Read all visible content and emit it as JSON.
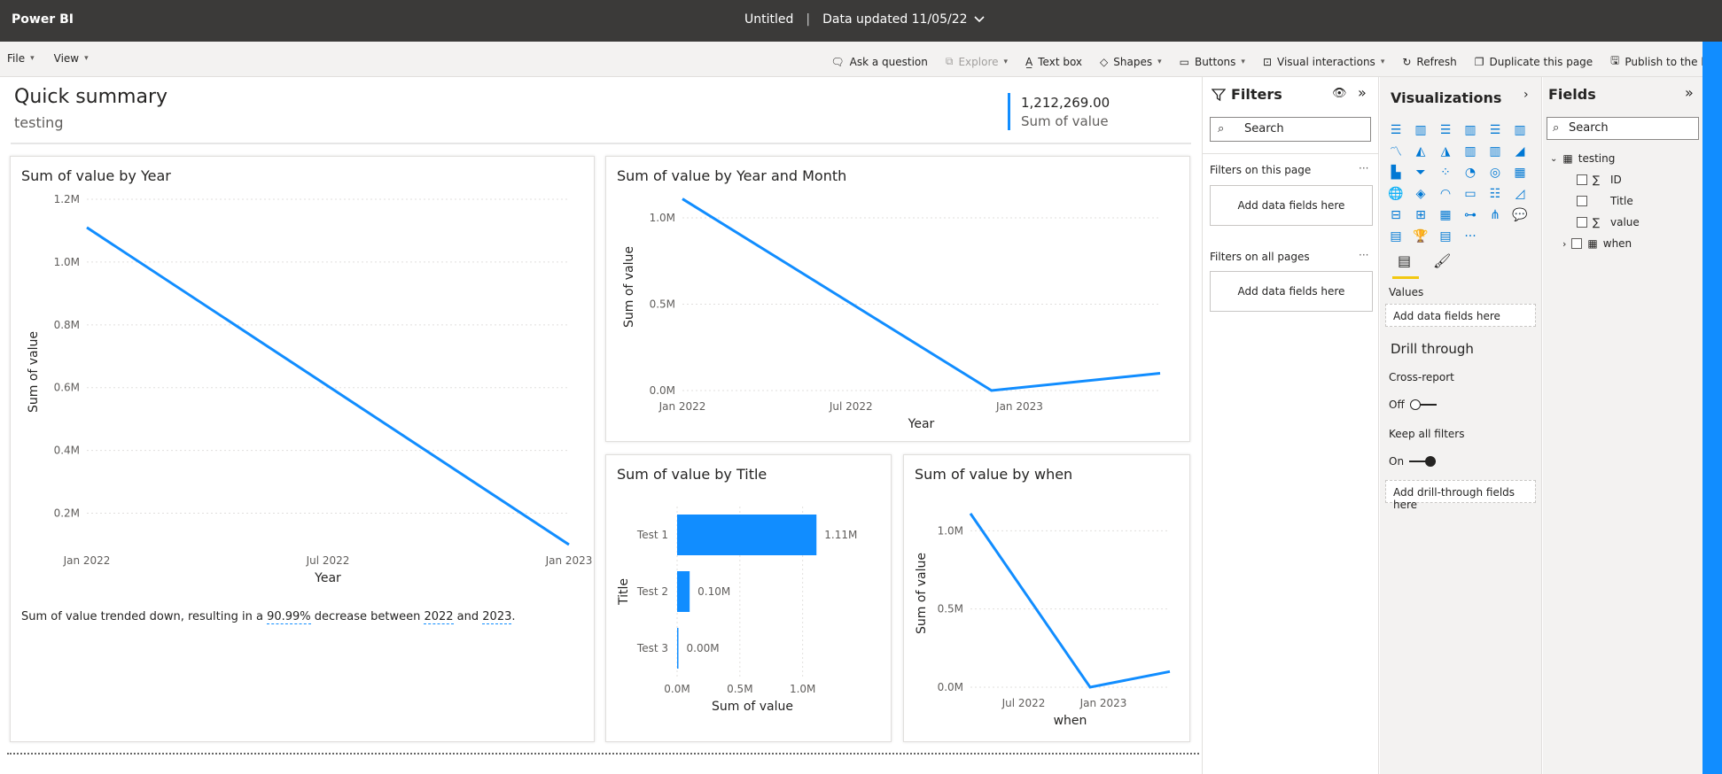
{
  "titlebar": {
    "app": "Power BI",
    "file": "Untitled",
    "updated": "Data updated 11/05/22"
  },
  "toolbar": {
    "left": [
      "File",
      "View"
    ],
    "right": {
      "ask": "Ask a question",
      "explore": "Explore",
      "textbox": "Text box",
      "shapes": "Shapes",
      "buttons": "Buttons",
      "visual_interactions": "Visual interactions",
      "refresh": "Refresh",
      "duplicate": "Duplicate this page",
      "publish": "Publish to the list"
    }
  },
  "header": {
    "title": "Quick summary",
    "subtitle": "testing",
    "kpi_value": "1,212,269.00",
    "kpi_label": "Sum of value"
  },
  "insight": {
    "prefix": "Sum of value trended down, resulting in a ",
    "pct": "90.99%",
    "mid": " decrease between ",
    "y1": "2022",
    "and": " and ",
    "y2": "2023",
    "suffix": "."
  },
  "chart_data": [
    {
      "type": "line",
      "title": "Sum of value by Year",
      "xlabel": "Year",
      "ylabel": "Sum of value",
      "x_ticks": [
        "Jan 2022",
        "Jul 2022",
        "Jan 2023"
      ],
      "y_ticks": [
        "0.2M",
        "0.4M",
        "0.6M",
        "0.8M",
        "1.0M",
        "1.2M"
      ],
      "ylim": [
        0.1,
        1.2
      ],
      "x": [
        "Jan 2022",
        "Jan 2023"
      ],
      "values": [
        1.11,
        0.1
      ],
      "color": "#118dff"
    },
    {
      "type": "line",
      "title": "Sum of value by Year and Month",
      "xlabel": "Year",
      "ylabel": "Sum of value",
      "x_ticks": [
        "Jan 2022",
        "Jul 2022",
        "Jan 2023"
      ],
      "y_ticks": [
        "0.0M",
        "0.5M",
        "1.0M"
      ],
      "ylim": [
        0,
        1.2
      ],
      "x": [
        "Jan 2022",
        "Dec 2022",
        "Jun 2023"
      ],
      "values": [
        1.11,
        0.0,
        0.1
      ],
      "color": "#118dff"
    },
    {
      "type": "bar",
      "orientation": "horizontal",
      "title": "Sum of value by Title",
      "xlabel": "Sum of value",
      "ylabel": "Title",
      "categories": [
        "Test 1",
        "Test 2",
        "Test 3"
      ],
      "values": [
        1.11,
        0.1,
        0.0
      ],
      "data_labels": [
        "1.11M",
        "0.10M",
        "0.00M"
      ],
      "x_ticks": [
        "0.0M",
        "0.5M",
        "1.0M"
      ],
      "xlim": [
        0,
        1.2
      ],
      "color": "#118dff"
    },
    {
      "type": "line",
      "title": "Sum of value by when",
      "xlabel": "when",
      "ylabel": "Sum of value",
      "x_ticks": [
        "Jul 2022",
        "Jan 2023"
      ],
      "y_ticks": [
        "0.0M",
        "0.5M",
        "1.0M"
      ],
      "ylim": [
        0,
        1.2
      ],
      "x": [
        "Mar 2022",
        "Dec 2022",
        "Jun 2023"
      ],
      "values": [
        1.11,
        0.0,
        0.1
      ],
      "color": "#118dff"
    }
  ],
  "filters": {
    "title": "Filters",
    "search": "Search",
    "on_page": "Filters on this page",
    "on_all": "Filters on all pages",
    "add": "Add data fields here"
  },
  "visualizations": {
    "title": "Visualizations",
    "more": "···",
    "values_label": "Values",
    "values_add": "Add data fields here",
    "drill_title": "Drill through",
    "cross_report": "Cross-report",
    "cross_state": "Off",
    "keep_filters": "Keep all filters",
    "keep_state": "On",
    "drill_add": "Add drill-through fields here"
  },
  "fields": {
    "title": "Fields",
    "search": "Search",
    "table": "testing",
    "items": [
      {
        "sigma": "∑",
        "name": "ID"
      },
      {
        "sigma": "",
        "name": "Title"
      },
      {
        "sigma": "∑",
        "name": "value"
      },
      {
        "sigma": "",
        "name": "when"
      }
    ]
  }
}
